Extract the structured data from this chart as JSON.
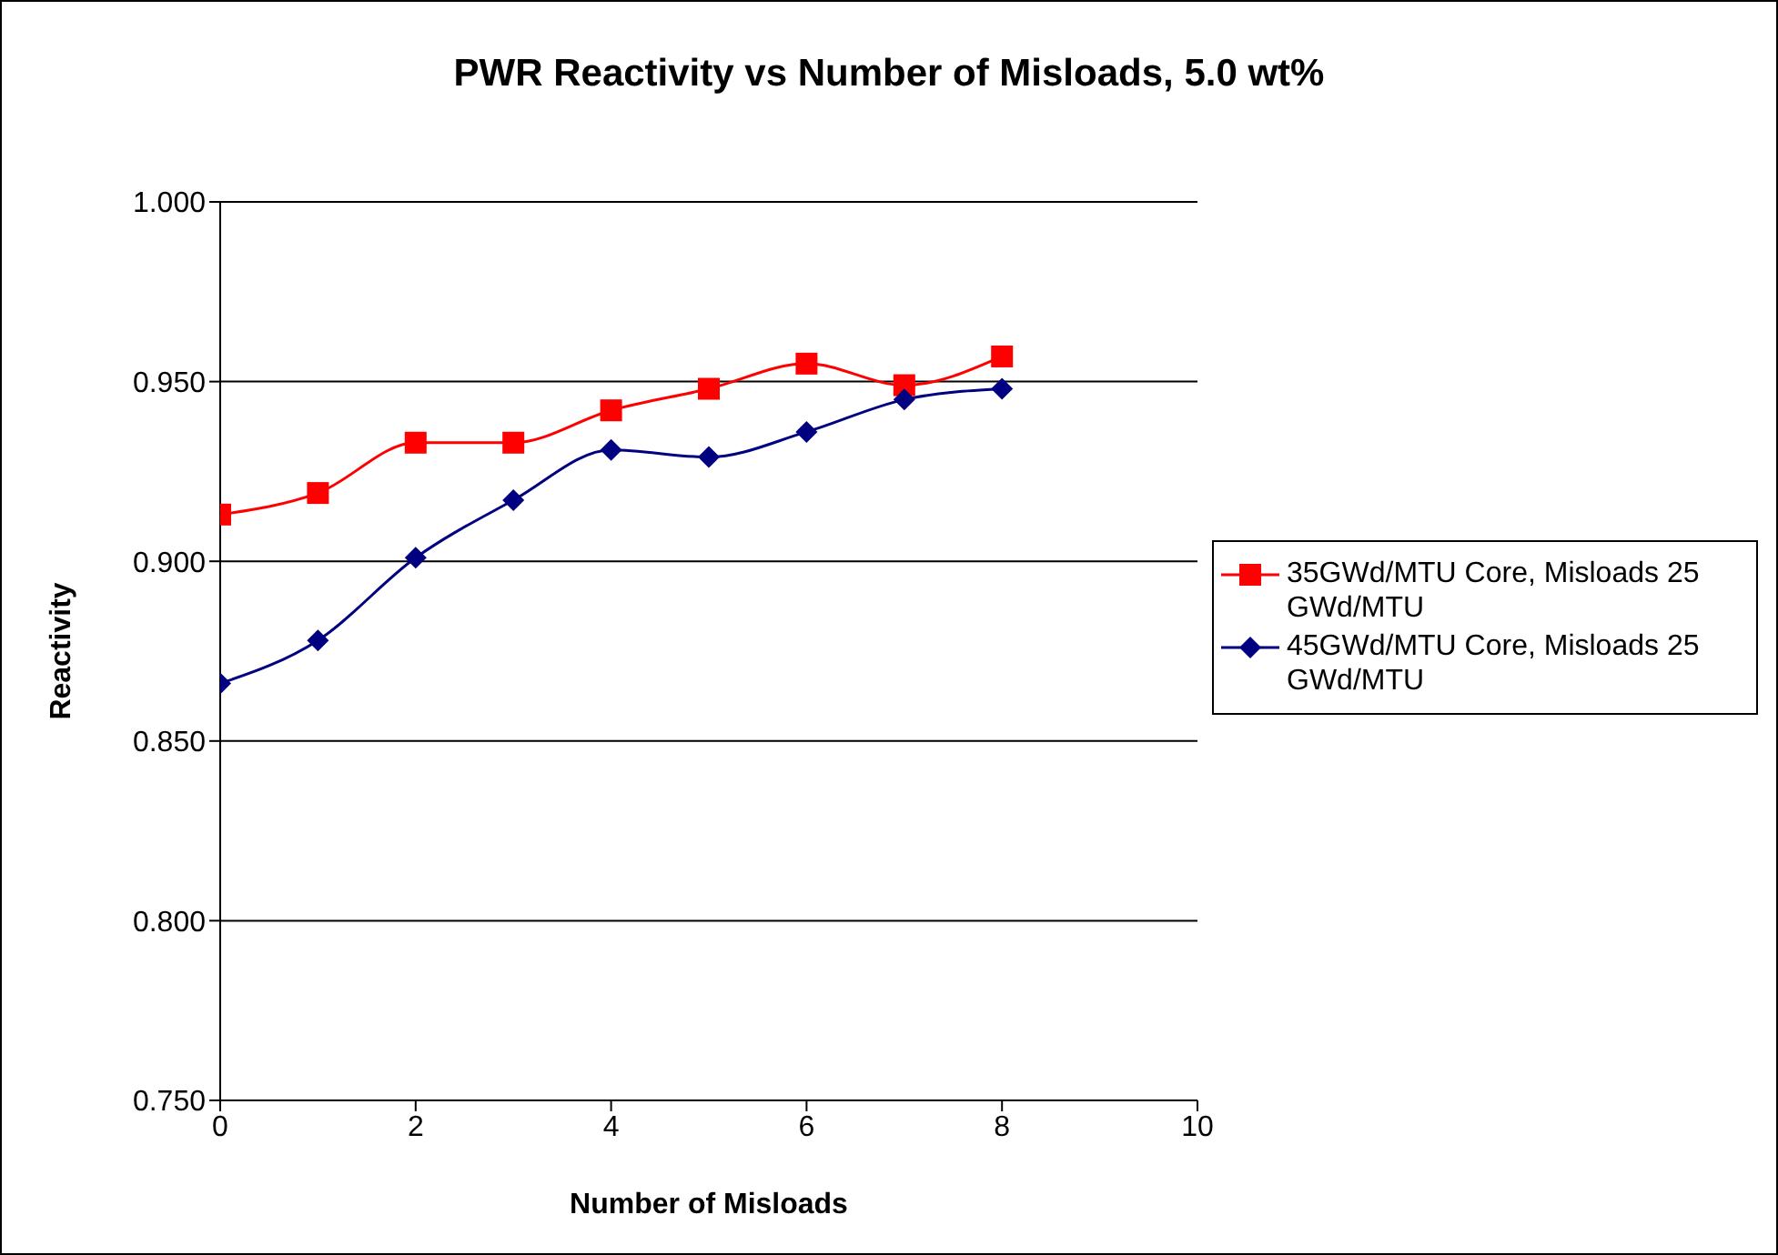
{
  "chart_data": {
    "type": "line",
    "title": "PWR Reactivity vs Number of Misloads, 5.0 wt%",
    "xlabel": "Number of Misloads",
    "ylabel": "Reactivity",
    "x": [
      0,
      1,
      2,
      3,
      4,
      5,
      6,
      7,
      8
    ],
    "series": [
      {
        "name": "35GWd/MTU Core, Misloads 25 GWd/MTU",
        "color": "#ff0000",
        "marker": "square",
        "values": [
          0.913,
          0.919,
          0.933,
          0.933,
          0.942,
          0.948,
          0.955,
          0.949,
          0.957
        ]
      },
      {
        "name": "45GWd/MTU Core, Misloads 25 GWd/MTU",
        "color": "#000080",
        "marker": "diamond",
        "values": [
          0.866,
          0.878,
          0.901,
          0.917,
          0.931,
          0.929,
          0.936,
          0.945,
          0.948
        ]
      }
    ],
    "xlim": [
      0,
      10
    ],
    "xticks": [
      0,
      2,
      4,
      6,
      8,
      10
    ],
    "ylim": [
      0.75,
      1.0
    ],
    "yticks": [
      {
        "value": 0.75,
        "label": "0.750"
      },
      {
        "value": 0.8,
        "label": "0.800"
      },
      {
        "value": 0.85,
        "label": "0.850"
      },
      {
        "value": 0.9,
        "label": "0.900"
      },
      {
        "value": 0.95,
        "label": "0.950"
      },
      {
        "value": 1.0,
        "label": "1.000"
      }
    ],
    "grid": "y",
    "legend": "right",
    "line_style": "solid"
  }
}
